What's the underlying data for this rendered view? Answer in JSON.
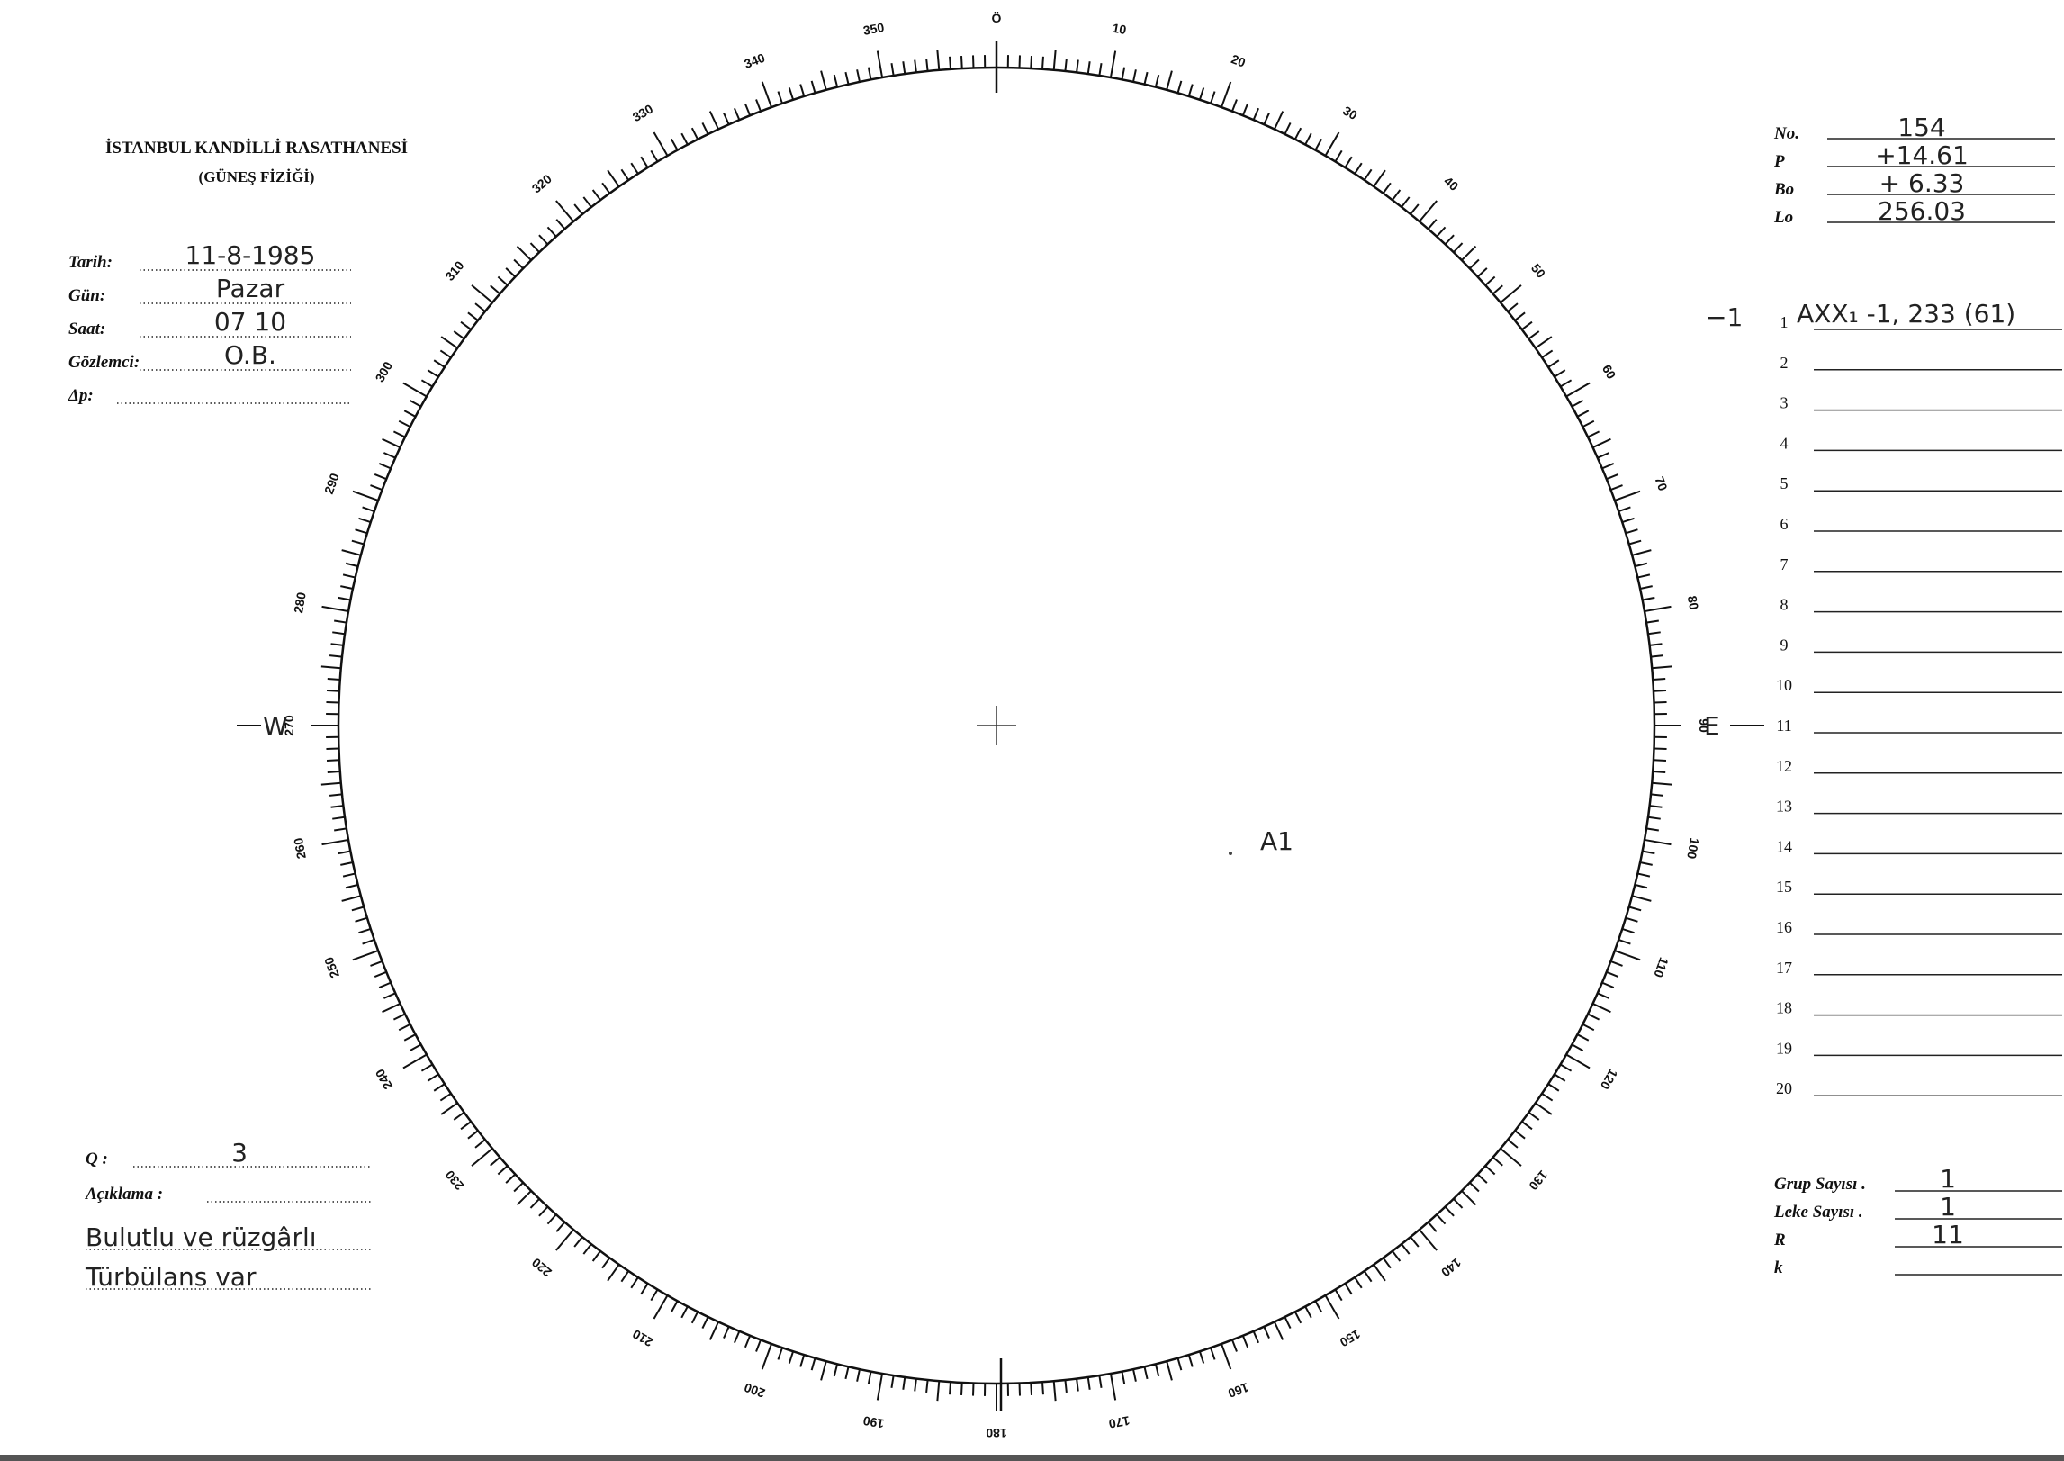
{
  "header": {
    "title": "İSTANBUL KANDİLLİ RASATHANESİ",
    "subtitle": "(GÜNEŞ FİZİĞİ)"
  },
  "left_fields": [
    {
      "label": "Tarih:",
      "value": "11-8-1985"
    },
    {
      "label": "Gün:",
      "value": "Pazar"
    },
    {
      "label": "Saat:",
      "value": "07 10"
    },
    {
      "label": "Gözlemci:",
      "value": "O.B."
    },
    {
      "label": "Δp:"
    }
  ],
  "right_fields": [
    {
      "label": "No.",
      "value": "154"
    },
    {
      "label": "P",
      "value": "+14.61"
    },
    {
      "label": "Bo",
      "value": "+ 6.33"
    },
    {
      "label": "Lo",
      "value": "256.03"
    }
  ],
  "disk": {
    "top_label": "Ö",
    "west_label": "W",
    "east_label": "E",
    "scale_labels": [
      10,
      20,
      30,
      40,
      50,
      60,
      70,
      80,
      90,
      100,
      110,
      120,
      130,
      140,
      150,
      160,
      170,
      180,
      190,
      200,
      210,
      220,
      230,
      240,
      250,
      260,
      270,
      280,
      290,
      300,
      310,
      320,
      330,
      340,
      350
    ],
    "annotation": "A1"
  },
  "groups": {
    "line_numbers": [
      1,
      2,
      3,
      4,
      5,
      6,
      7,
      8,
      9,
      10,
      11,
      12,
      13,
      14,
      15,
      16,
      17,
      18,
      19,
      20
    ],
    "entry": {
      "margin": "−1",
      "text": "AXX₁ -1, 233 (61)"
    }
  },
  "bottom_left": {
    "q_label": "Q :",
    "q_value": "3",
    "remarks_label": "Açıklama :",
    "notes": [
      "Bulutlu ve rüzgârlı",
      "Türbülans var"
    ]
  },
  "bottom_right": [
    {
      "label": "Grup Sayısı .",
      "value": "1"
    },
    {
      "label": "Leke Sayısı .",
      "value": "1"
    },
    {
      "label": "R",
      "value": "11"
    },
    {
      "label": "k"
    }
  ]
}
